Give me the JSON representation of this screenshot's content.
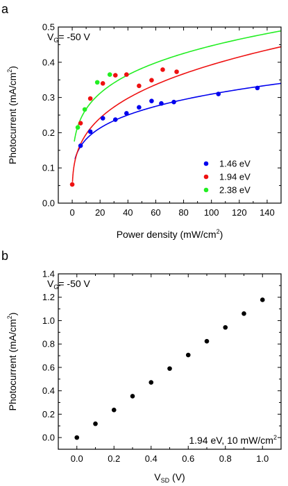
{
  "chart_data": [
    {
      "type": "scatter",
      "panel_label": "a",
      "annotation": {
        "main": "V",
        "sub": "G",
        "rest": "= -50 V"
      },
      "xlabel": {
        "main": "Power density (mW/cm",
        "sup": "2",
        "tail": ")"
      },
      "ylabel": {
        "main": "Photocurrent (mA/cm",
        "sup": "2",
        "tail": ")"
      },
      "xlim": [
        -10,
        150
      ],
      "ylim": [
        0.0,
        0.5
      ],
      "xticks": [
        0,
        20,
        40,
        60,
        80,
        100,
        120,
        140
      ],
      "yticks": [
        0.0,
        0.1,
        0.2,
        0.3,
        0.4,
        0.5
      ],
      "xtick_labels": [
        "0",
        "20",
        "40",
        "60",
        "80",
        "100",
        "120",
        "140"
      ],
      "ytick_labels": [
        "0.0",
        "0.1",
        "0.2",
        "0.3",
        "0.4",
        "0.5"
      ],
      "legend_position": "bottom-right",
      "series": [
        {
          "name": "1.46 eV",
          "color": "#0000ee",
          "x": [
            6,
            13,
            22,
            31,
            39,
            48,
            57,
            64,
            73,
            105,
            133
          ],
          "y": [
            0.163,
            0.203,
            0.241,
            0.237,
            0.255,
            0.272,
            0.29,
            0.283,
            0.287,
            0.31,
            0.327
          ],
          "fit": {
            "x_start": 2,
            "x_end": 150,
            "y_start": 0.125,
            "y_end": 0.34
          }
        },
        {
          "name": "1.94 eV",
          "color": "#ee1111",
          "x": [
            0,
            6,
            13,
            22,
            31,
            39,
            48,
            57,
            65,
            75
          ],
          "y": [
            0.053,
            0.227,
            0.297,
            0.34,
            0.363,
            0.365,
            0.333,
            0.349,
            0.379,
            0.373
          ],
          "fit": {
            "x_start": 0.2,
            "x_end": 150,
            "y_start": 0.06,
            "y_end": 0.444
          }
        },
        {
          "name": "2.38 eV",
          "color": "#22ee22",
          "x": [
            4,
            9,
            18,
            27
          ],
          "y": [
            0.215,
            0.266,
            0.343,
            0.365
          ],
          "fit": {
            "x_start": 1.5,
            "x_end": 150,
            "y_start": 0.175,
            "y_end": 0.489
          }
        }
      ]
    },
    {
      "type": "scatter",
      "panel_label": "b",
      "annotation": {
        "main": "V",
        "sub": "G",
        "rest": "= -50 V"
      },
      "condition_text": {
        "main": "1.94 eV, 10 mW/cm",
        "sup": "2"
      },
      "xlabel": {
        "main": "V",
        "sub": "SD",
        "tail": " (V)"
      },
      "ylabel": {
        "main": "Photocurrent (mA/cm",
        "sup": "2",
        "tail": ")"
      },
      "xlim": [
        -0.1,
        1.1
      ],
      "ylim": [
        -0.1,
        1.4
      ],
      "xticks": [
        0.0,
        0.2,
        0.4,
        0.6,
        0.8,
        1.0
      ],
      "yticks": [
        0.0,
        0.2,
        0.4,
        0.6,
        0.8,
        1.0,
        1.2,
        1.4
      ],
      "xtick_labels": [
        "0.0",
        "0.2",
        "0.4",
        "0.6",
        "0.8",
        "1.0"
      ],
      "ytick_labels": [
        "0.0",
        "0.2",
        "0.4",
        "0.6",
        "0.8",
        "1.0",
        "1.2",
        "1.4"
      ],
      "series": [
        {
          "color": "#000000",
          "x": [
            0.0,
            0.1,
            0.2,
            0.3,
            0.4,
            0.5,
            0.6,
            0.7,
            0.8,
            0.9,
            1.0
          ],
          "y": [
            0.0,
            0.118,
            0.236,
            0.354,
            0.472,
            0.59,
            0.706,
            0.824,
            0.942,
            1.06,
            1.178
          ]
        }
      ]
    }
  ]
}
